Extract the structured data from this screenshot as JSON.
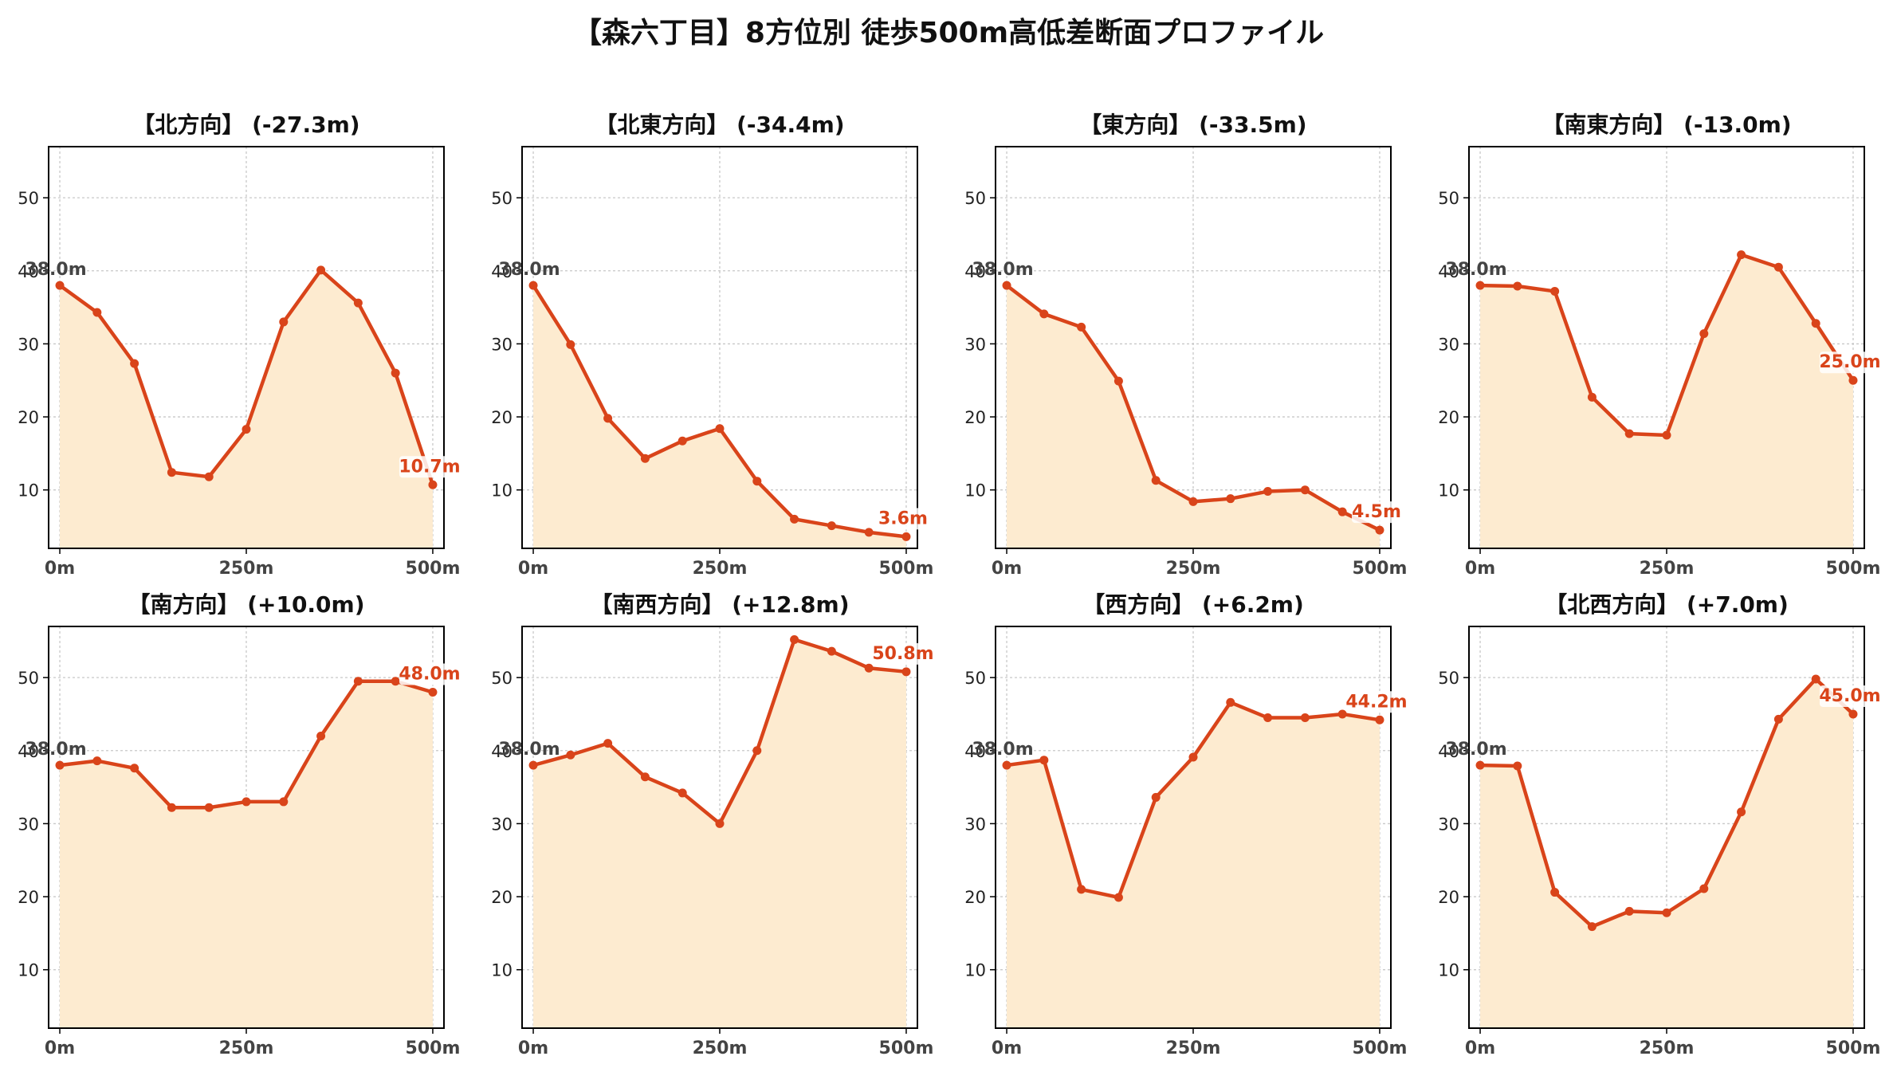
{
  "suptitle": "【森六丁目】8方位別 徒歩500m高低差断面プロファイル",
  "colors": {
    "line": "#d9441a",
    "fill": "#fdebd0",
    "grid": "#c8c8c8",
    "start_label": "#444444",
    "end_label": "#d9441a"
  },
  "chart_data": [
    {
      "type": "area",
      "title": "【北方向】 (-27.3m)",
      "x": [
        0,
        50,
        100,
        150,
        200,
        250,
        300,
        350,
        400,
        450,
        500
      ],
      "values": [
        38.0,
        34.3,
        27.3,
        12.4,
        11.8,
        18.3,
        33.0,
        40.1,
        35.6,
        26.0,
        10.7
      ],
      "start_label": "38.0m",
      "end_label": "10.7m",
      "xticks": [
        "0m",
        "250m",
        "500m"
      ],
      "yticks": [
        "10",
        "20",
        "30",
        "40",
        "50"
      ],
      "xlim": [
        -15,
        515
      ],
      "ylim": [
        2,
        57
      ],
      "grid": true
    },
    {
      "type": "area",
      "title": "【北東方向】 (-34.4m)",
      "x": [
        0,
        50,
        100,
        150,
        200,
        250,
        300,
        350,
        400,
        450,
        500
      ],
      "values": [
        38.0,
        29.9,
        19.8,
        14.3,
        16.7,
        18.4,
        11.2,
        6.0,
        5.1,
        4.2,
        3.6
      ],
      "start_label": "38.0m",
      "end_label": "3.6m",
      "xticks": [
        "0m",
        "250m",
        "500m"
      ],
      "yticks": [
        "10",
        "20",
        "30",
        "40",
        "50"
      ],
      "xlim": [
        -15,
        515
      ],
      "ylim": [
        2,
        57
      ],
      "grid": true
    },
    {
      "type": "area",
      "title": "【東方向】 (-33.5m)",
      "x": [
        0,
        50,
        100,
        150,
        200,
        250,
        300,
        350,
        400,
        450,
        500
      ],
      "values": [
        38.0,
        34.1,
        32.3,
        24.9,
        11.3,
        8.4,
        8.8,
        9.8,
        10.0,
        7.0,
        4.5
      ],
      "start_label": "38.0m",
      "end_label": "4.5m",
      "xticks": [
        "0m",
        "250m",
        "500m"
      ],
      "yticks": [
        "10",
        "20",
        "30",
        "40",
        "50"
      ],
      "xlim": [
        -15,
        515
      ],
      "ylim": [
        2,
        57
      ],
      "grid": true
    },
    {
      "type": "area",
      "title": "【南東方向】 (-13.0m)",
      "x": [
        0,
        50,
        100,
        150,
        200,
        250,
        300,
        350,
        400,
        450,
        500
      ],
      "values": [
        38.0,
        37.9,
        37.2,
        22.7,
        17.7,
        17.5,
        31.4,
        42.2,
        40.5,
        32.8,
        25.0
      ],
      "start_label": "38.0m",
      "end_label": "25.0m",
      "xticks": [
        "0m",
        "250m",
        "500m"
      ],
      "yticks": [
        "10",
        "20",
        "30",
        "40",
        "50"
      ],
      "xlim": [
        -15,
        515
      ],
      "ylim": [
        2,
        57
      ],
      "grid": true
    },
    {
      "type": "area",
      "title": "【南方向】 (+10.0m)",
      "x": [
        0,
        50,
        100,
        150,
        200,
        250,
        300,
        350,
        400,
        450,
        500
      ],
      "values": [
        38.0,
        38.6,
        37.6,
        32.2,
        32.2,
        33.0,
        33.0,
        42.0,
        49.5,
        49.5,
        48.0
      ],
      "start_label": "38.0m",
      "end_label": "48.0m",
      "xticks": [
        "0m",
        "250m",
        "500m"
      ],
      "yticks": [
        "10",
        "20",
        "30",
        "40",
        "50"
      ],
      "xlim": [
        -15,
        515
      ],
      "ylim": [
        2,
        57
      ],
      "grid": true
    },
    {
      "type": "area",
      "title": "【南西方向】 (+12.8m)",
      "x": [
        0,
        50,
        100,
        150,
        200,
        250,
        300,
        350,
        400,
        450,
        500
      ],
      "values": [
        38.0,
        39.4,
        41.0,
        36.4,
        34.2,
        30.0,
        40.0,
        55.2,
        53.6,
        51.3,
        50.8
      ],
      "start_label": "38.0m",
      "end_label": "50.8m",
      "xticks": [
        "0m",
        "250m",
        "500m"
      ],
      "yticks": [
        "10",
        "20",
        "30",
        "40",
        "50"
      ],
      "xlim": [
        -15,
        515
      ],
      "ylim": [
        2,
        57
      ],
      "grid": true
    },
    {
      "type": "area",
      "title": "【西方向】 (+6.2m)",
      "x": [
        0,
        50,
        100,
        150,
        200,
        250,
        300,
        350,
        400,
        450,
        500
      ],
      "values": [
        38.0,
        38.7,
        21.0,
        19.9,
        33.6,
        39.1,
        46.6,
        44.5,
        44.5,
        45.0,
        44.2
      ],
      "start_label": "38.0m",
      "end_label": "44.2m",
      "xticks": [
        "0m",
        "250m",
        "500m"
      ],
      "yticks": [
        "10",
        "20",
        "30",
        "40",
        "50"
      ],
      "xlim": [
        -15,
        515
      ],
      "ylim": [
        2,
        57
      ],
      "grid": true
    },
    {
      "type": "area",
      "title": "【北西方向】 (+7.0m)",
      "x": [
        0,
        50,
        100,
        150,
        200,
        250,
        300,
        350,
        400,
        450,
        500
      ],
      "values": [
        38.0,
        37.9,
        20.6,
        15.9,
        18.0,
        17.8,
        21.1,
        31.6,
        44.3,
        49.8,
        45.0
      ],
      "start_label": "38.0m",
      "end_label": "45.0m",
      "xticks": [
        "0m",
        "250m",
        "500m"
      ],
      "yticks": [
        "10",
        "20",
        "30",
        "40",
        "50"
      ],
      "xlim": [
        -15,
        515
      ],
      "ylim": [
        2,
        57
      ],
      "grid": true
    }
  ]
}
